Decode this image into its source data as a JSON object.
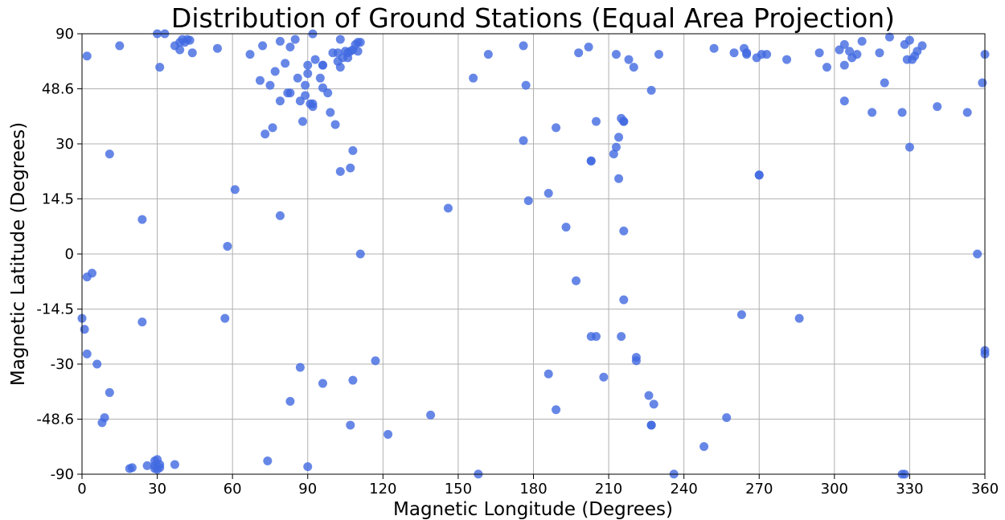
{
  "chart_data": {
    "type": "scatter",
    "title": "Distribution of Ground Stations (Equal Area Projection)",
    "xlabel": "Magnetic Longitude (Degrees)",
    "ylabel": "Magnetic Latitude (Degrees)",
    "xlim": [
      0,
      360
    ],
    "y_scale": "sine (equal area)",
    "ylim": [
      -90,
      90
    ],
    "grid": true,
    "marker_color": "#4169e1",
    "x_ticks": [
      0,
      30,
      60,
      90,
      120,
      150,
      180,
      210,
      240,
      270,
      300,
      330,
      360
    ],
    "x_tick_labels": [
      "0",
      "30",
      "60",
      "90",
      "120",
      "150",
      "180",
      "210",
      "240",
      "270",
      "300",
      "330",
      "360"
    ],
    "y_ticks": [
      -90,
      -48.6,
      -30,
      -14.5,
      0,
      14.5,
      30,
      48.6,
      90
    ],
    "y_tick_labels": [
      "-90",
      "-48.6",
      "-30",
      "-14.5",
      "0",
      "14.5",
      "30",
      "48.6",
      "90"
    ],
    "points": [
      {
        "x": 2,
        "y": 64
      },
      {
        "x": 15,
        "y": 71
      },
      {
        "x": 31,
        "y": 58
      },
      {
        "x": 30,
        "y": 89
      },
      {
        "x": 33,
        "y": 89
      },
      {
        "x": 37,
        "y": 71
      },
      {
        "x": 39,
        "y": 74
      },
      {
        "x": 39,
        "y": 68
      },
      {
        "x": 40,
        "y": 77
      },
      {
        "x": 41,
        "y": 74
      },
      {
        "x": 42,
        "y": 77
      },
      {
        "x": 43,
        "y": 76
      },
      {
        "x": 44,
        "y": 66
      },
      {
        "x": 54,
        "y": 69
      },
      {
        "x": 67,
        "y": 65
      },
      {
        "x": 72,
        "y": 71
      },
      {
        "x": 79,
        "y": 75
      },
      {
        "x": 83,
        "y": 70
      },
      {
        "x": 85,
        "y": 77
      },
      {
        "x": 92,
        "y": 88
      },
      {
        "x": 90,
        "y": 59
      },
      {
        "x": 93,
        "y": 62
      },
      {
        "x": 96,
        "y": 59
      },
      {
        "x": 96,
        "y": 59
      },
      {
        "x": 81,
        "y": 60
      },
      {
        "x": 71,
        "y": 52
      },
      {
        "x": 75,
        "y": 50
      },
      {
        "x": 77,
        "y": 56
      },
      {
        "x": 79,
        "y": 44
      },
      {
        "x": 82,
        "y": 47
      },
      {
        "x": 83,
        "y": 47
      },
      {
        "x": 86,
        "y": 53
      },
      {
        "x": 87,
        "y": 44
      },
      {
        "x": 89,
        "y": 50
      },
      {
        "x": 89,
        "y": 46
      },
      {
        "x": 90,
        "y": 55
      },
      {
        "x": 91,
        "y": 43
      },
      {
        "x": 92,
        "y": 42
      },
      {
        "x": 92,
        "y": 43
      },
      {
        "x": 95,
        "y": 53
      },
      {
        "x": 96,
        "y": 49
      },
      {
        "x": 98,
        "y": 47
      },
      {
        "x": 99,
        "y": 40
      },
      {
        "x": 100,
        "y": 66
      },
      {
        "x": 101,
        "y": 36
      },
      {
        "x": 102,
        "y": 61
      },
      {
        "x": 103,
        "y": 58
      },
      {
        "x": 103,
        "y": 77
      },
      {
        "x": 104,
        "y": 63
      },
      {
        "x": 105,
        "y": 67
      },
      {
        "x": 106,
        "y": 63
      },
      {
        "x": 107,
        "y": 67
      },
      {
        "x": 108,
        "y": 68
      },
      {
        "x": 109,
        "y": 72
      },
      {
        "x": 110,
        "y": 67
      },
      {
        "x": 110,
        "y": 74
      },
      {
        "x": 111,
        "y": 74
      },
      {
        "x": 102,
        "y": 66
      },
      {
        "x": 106,
        "y": 66
      },
      {
        "x": 88,
        "y": 37
      },
      {
        "x": 73,
        "y": 33
      },
      {
        "x": 76,
        "y": 35
      },
      {
        "x": 108,
        "y": 28
      },
      {
        "x": 103,
        "y": 22
      },
      {
        "x": 107,
        "y": 23
      },
      {
        "x": 11,
        "y": 27
      },
      {
        "x": 61,
        "y": 17
      },
      {
        "x": 24,
        "y": 9
      },
      {
        "x": 79,
        "y": 10
      },
      {
        "x": 58,
        "y": 2
      },
      {
        "x": 111,
        "y": 0
      },
      {
        "x": 2,
        "y": -6
      },
      {
        "x": 4,
        "y": -5
      },
      {
        "x": 0,
        "y": -17
      },
      {
        "x": 1,
        "y": -20
      },
      {
        "x": 2,
        "y": -27
      },
      {
        "x": 6,
        "y": -30
      },
      {
        "x": 11,
        "y": -39
      },
      {
        "x": 9,
        "y": -48
      },
      {
        "x": 8,
        "y": -50
      },
      {
        "x": 19,
        "y": -77
      },
      {
        "x": 20,
        "y": -76
      },
      {
        "x": 24,
        "y": -18
      },
      {
        "x": 26,
        "y": -74
      },
      {
        "x": 29,
        "y": -74
      },
      {
        "x": 29,
        "y": -77
      },
      {
        "x": 29,
        "y": -70
      },
      {
        "x": 30,
        "y": -69
      },
      {
        "x": 30,
        "y": -78
      },
      {
        "x": 31,
        "y": -76
      },
      {
        "x": 31,
        "y": -73
      },
      {
        "x": 37,
        "y": -73
      },
      {
        "x": 57,
        "y": -17
      },
      {
        "x": 74,
        "y": -70
      },
      {
        "x": 83,
        "y": -42
      },
      {
        "x": 87,
        "y": -31
      },
      {
        "x": 90,
        "y": -75
      },
      {
        "x": 96,
        "y": -36
      },
      {
        "x": 107,
        "y": -51
      },
      {
        "x": 108,
        "y": -35
      },
      {
        "x": 117,
        "y": -29
      },
      {
        "x": 122,
        "y": -55
      },
      {
        "x": 139,
        "y": -47
      },
      {
        "x": 146,
        "y": 12
      },
      {
        "x": 156,
        "y": 53
      },
      {
        "x": 158,
        "y": -88
      },
      {
        "x": 162,
        "y": 65
      },
      {
        "x": 176,
        "y": 71
      },
      {
        "x": 176,
        "y": 31
      },
      {
        "x": 177,
        "y": 50
      },
      {
        "x": 178,
        "y": 14
      },
      {
        "x": 186,
        "y": 16
      },
      {
        "x": 186,
        "y": -33
      },
      {
        "x": 189,
        "y": 35
      },
      {
        "x": 189,
        "y": -45
      },
      {
        "x": 193,
        "y": 7
      },
      {
        "x": 197,
        "y": -7
      },
      {
        "x": 198,
        "y": 66
      },
      {
        "x": 202,
        "y": 70
      },
      {
        "x": 203,
        "y": 25
      },
      {
        "x": 203,
        "y": 25
      },
      {
        "x": 203,
        "y": -22
      },
      {
        "x": 205,
        "y": 37
      },
      {
        "x": 205,
        "y": -22
      },
      {
        "x": 208,
        "y": -34
      },
      {
        "x": 212,
        "y": 27
      },
      {
        "x": 213,
        "y": 29
      },
      {
        "x": 213,
        "y": 65
      },
      {
        "x": 214,
        "y": 32
      },
      {
        "x": 214,
        "y": 20
      },
      {
        "x": 215,
        "y": 38
      },
      {
        "x": 215,
        "y": -22
      },
      {
        "x": 216,
        "y": 37
      },
      {
        "x": 216,
        "y": 37
      },
      {
        "x": 216,
        "y": 6
      },
      {
        "x": 216,
        "y": -12
      },
      {
        "x": 218,
        "y": 62
      },
      {
        "x": 220,
        "y": 58
      },
      {
        "x": 221,
        "y": -28
      },
      {
        "x": 221,
        "y": -29
      },
      {
        "x": 226,
        "y": -40
      },
      {
        "x": 227,
        "y": 48
      },
      {
        "x": 227,
        "y": -51
      },
      {
        "x": 227,
        "y": -51
      },
      {
        "x": 228,
        "y": -43
      },
      {
        "x": 230,
        "y": 65
      },
      {
        "x": 236,
        "y": -88
      },
      {
        "x": 248,
        "y": -61
      },
      {
        "x": 252,
        "y": 69
      },
      {
        "x": 257,
        "y": -48
      },
      {
        "x": 260,
        "y": 66
      },
      {
        "x": 263,
        "y": -16
      },
      {
        "x": 264,
        "y": 69
      },
      {
        "x": 265,
        "y": 66
      },
      {
        "x": 265,
        "y": 65
      },
      {
        "x": 269,
        "y": 63
      },
      {
        "x": 270,
        "y": 21
      },
      {
        "x": 270,
        "y": 21
      },
      {
        "x": 271,
        "y": 65
      },
      {
        "x": 273,
        "y": 65
      },
      {
        "x": 281,
        "y": 62
      },
      {
        "x": 286,
        "y": -17
      },
      {
        "x": 294,
        "y": 66
      },
      {
        "x": 297,
        "y": 58
      },
      {
        "x": 302,
        "y": 68
      },
      {
        "x": 304,
        "y": 59
      },
      {
        "x": 304,
        "y": 44
      },
      {
        "x": 304,
        "y": 72
      },
      {
        "x": 306,
        "y": 67
      },
      {
        "x": 307,
        "y": 63
      },
      {
        "x": 309,
        "y": 65
      },
      {
        "x": 311,
        "y": 75
      },
      {
        "x": 315,
        "y": 40
      },
      {
        "x": 318,
        "y": 66
      },
      {
        "x": 320,
        "y": 51
      },
      {
        "x": 322,
        "y": 80
      },
      {
        "x": 327,
        "y": 40
      },
      {
        "x": 327,
        "y": -89
      },
      {
        "x": 328,
        "y": -89
      },
      {
        "x": 328,
        "y": 72
      },
      {
        "x": 329,
        "y": 62
      },
      {
        "x": 330,
        "y": 29
      },
      {
        "x": 330,
        "y": 76
      },
      {
        "x": 331,
        "y": 62
      },
      {
        "x": 332,
        "y": 64
      },
      {
        "x": 333,
        "y": 67
      },
      {
        "x": 335,
        "y": 71
      },
      {
        "x": 341,
        "y": 42
      },
      {
        "x": 353,
        "y": 40
      },
      {
        "x": 357,
        "y": 0
      },
      {
        "x": 359,
        "y": 51
      },
      {
        "x": 360,
        "y": 65
      },
      {
        "x": 360,
        "y": -26
      },
      {
        "x": 360,
        "y": -27
      }
    ]
  }
}
